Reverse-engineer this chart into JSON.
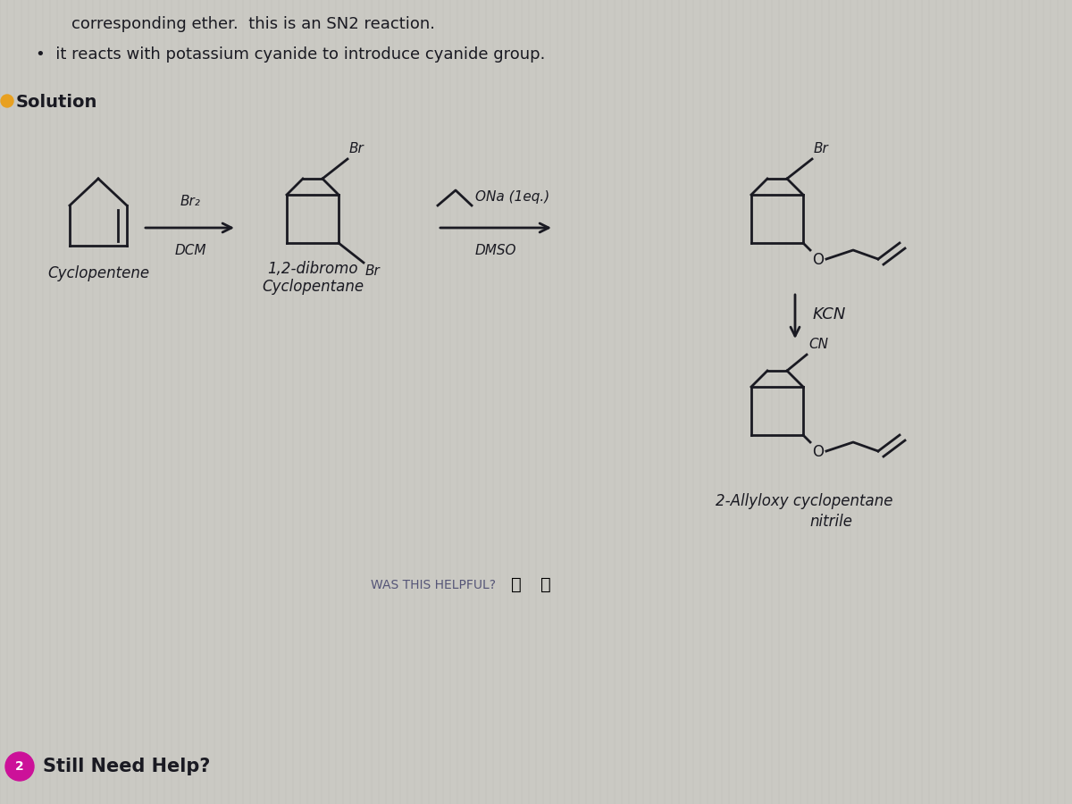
{
  "bg_color": "#cac9c3",
  "line_color": "#b5b4ae",
  "text_color": "#1a1a22",
  "draw_color": "#1a1a22",
  "title_line1": "corresponding ether.  this is an SN2 reaction.",
  "bullet_line": "it reacts with potassium cyanide to introduce cyanide group.",
  "solution_label": "Solution",
  "reagent1_above": "Br₂",
  "reagent1_below": "DCM",
  "label1": "Cyclopentene",
  "label2a": "1,2-dibromo",
  "label2b": "Cyclopentane",
  "reagent2_above": "ONa (1eq.)",
  "reagent2_below": "DMSO",
  "kcn_label": "KCN",
  "cn_label": "CN",
  "br_label": "Br",
  "o_label": "O",
  "final_label_line1": "2-Allyloxy cyclopentane",
  "final_label_line2": "nitrile",
  "was_helpful": "WAS THIS HELPFUL?",
  "still_need": "Still Need Help?",
  "circle_color": "#cc1199",
  "circle_num": "2"
}
